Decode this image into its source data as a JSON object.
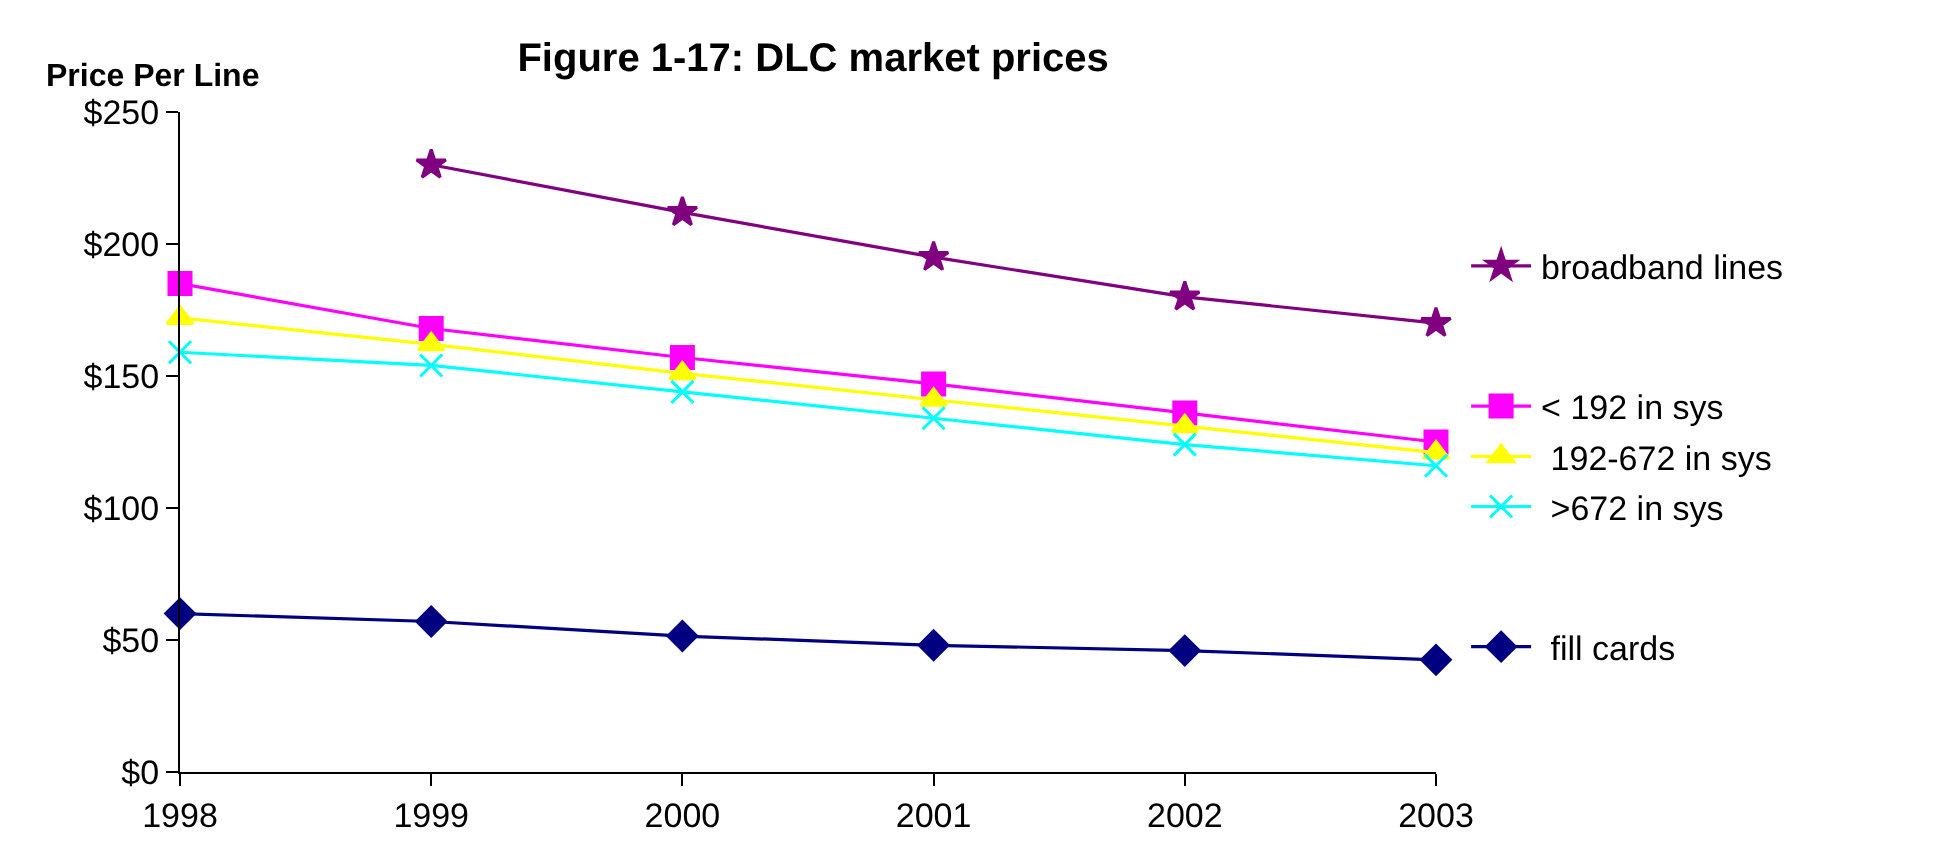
{
  "chart_data": {
    "type": "line",
    "title": "Figure 1-17: DLC market prices",
    "ylabel": "Price Per Line",
    "x": [
      1998,
      1999,
      2000,
      2001,
      2002,
      2003
    ],
    "xlim": [
      1998,
      2003
    ],
    "xticks": [
      1998,
      1999,
      2000,
      2001,
      2002,
      2003
    ],
    "ylim": [
      0,
      250
    ],
    "yticks": [
      {
        "value": 0,
        "label": "$0"
      },
      {
        "value": 50,
        "label": "$50"
      },
      {
        "value": 100,
        "label": "$100"
      },
      {
        "value": 150,
        "label": "$150"
      },
      {
        "value": 200,
        "label": "$200"
      },
      {
        "value": 250,
        "label": "$250"
      }
    ],
    "legend": "right",
    "series": [
      {
        "name": "broadband lines",
        "color": "#800080",
        "marker": "star",
        "values": [
          null,
          230,
          212,
          195,
          180,
          170
        ]
      },
      {
        "name": "< 192 in sys",
        "color": "#ff00ff",
        "marker": "square",
        "values": [
          185,
          168,
          157,
          147,
          136,
          125
        ]
      },
      {
        "name": " 192-672 in sys",
        "color": "#ffff00",
        "marker": "triangle",
        "values": [
          172,
          162,
          151,
          141,
          131,
          121
        ]
      },
      {
        "name": " >672 in sys",
        "color": "#00ffff",
        "marker": "cross",
        "values": [
          159,
          154,
          144,
          134,
          124,
          116
        ]
      },
      {
        "name": " fill cards",
        "color": "#000080",
        "marker": "diamond",
        "values": [
          60,
          57,
          51.5,
          48,
          46,
          42.5
        ]
      }
    ]
  }
}
